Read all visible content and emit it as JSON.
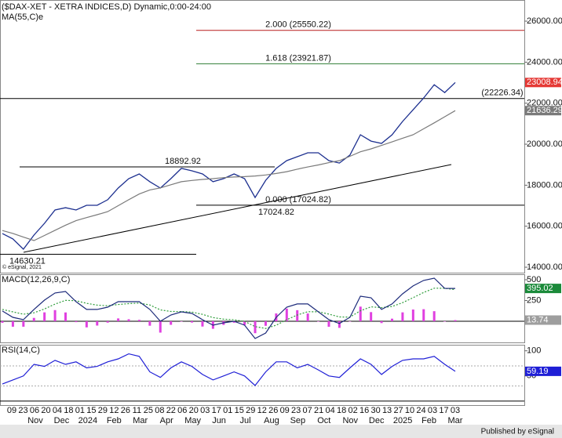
{
  "chart_data": [
    {
      "type": "line",
      "title": "($DAX-XET - XETRA INDICES,D) Dynamic,0:00-24:00",
      "subtitle": "MA(55,C)e",
      "watermark": "© eSignal, 2021",
      "ylim": [
        13734,
        27032
      ],
      "yticks": [
        {
          "value": 14000,
          "label": "14000.00"
        },
        {
          "value": 16000,
          "label": "16000.00"
        },
        {
          "value": 18000,
          "label": "18000.00"
        },
        {
          "value": 20000,
          "label": "20000.00"
        },
        {
          "value": 22000,
          "label": "22000.00"
        },
        {
          "value": 24000,
          "label": "24000.00"
        },
        {
          "value": 26000,
          "label": "26000.00"
        }
      ],
      "series": [
        {
          "name": "$DAX-XET",
          "color": "#1c2f8f",
          "box_color": "#e53935",
          "values": [
            15640,
            15380,
            14880,
            15570,
            16140,
            16790,
            16900,
            16790,
            17020,
            17020,
            17290,
            17860,
            18320,
            18550,
            18170,
            17860,
            18320,
            18820,
            18700,
            18550,
            18170,
            18320,
            18550,
            18320,
            17400,
            18240,
            18820,
            19200,
            19390,
            19580,
            19580,
            19200,
            19080,
            19470,
            20460,
            20150,
            20040,
            20460,
            21110,
            21680,
            22250,
            22900,
            22520,
            23008.94
          ]
        },
        {
          "name": "MA(55,C)e",
          "color": "#7a7a7a",
          "box_color": "#7a7a7a",
          "values": [
            15790,
            15650,
            15470,
            15300,
            15550,
            15800,
            16050,
            16270,
            16420,
            16560,
            16710,
            17000,
            17290,
            17570,
            17770,
            17870,
            18020,
            18170,
            18230,
            18280,
            18320,
            18370,
            18400,
            18420,
            18450,
            18500,
            18570,
            18660,
            18780,
            18890,
            18990,
            19100,
            19200,
            19410,
            19630,
            19770,
            19940,
            20110,
            20290,
            20460,
            20750,
            21040,
            21340,
            21636.29
          ]
        }
      ],
      "levels": [
        {
          "label": "2.000 (25550.22)",
          "value": 25550.22,
          "color": "#b71c1c"
        },
        {
          "label": "1.618 (23921.87)",
          "value": 23921.87,
          "color": "#2e7d32"
        },
        {
          "label": "(22226.34)",
          "value": 22226.34,
          "color": "#000000"
        },
        {
          "value": 18892.92,
          "color": "#000000"
        },
        {
          "label": "0.000 (17024.82)",
          "value": 17024.82,
          "color": "#000000"
        },
        {
          "value": 14630.21,
          "color": "#000000"
        }
      ],
      "swing_low": 17024.82,
      "trendline": [
        14728,
        19007
      ]
    },
    {
      "type": "line",
      "title": "MACD(12,26,9,C)",
      "ylim": [
        -255,
        566
      ],
      "yticks": [
        250,
        500
      ],
      "series": [
        {
          "style": "bar",
          "color": "#e040e0",
          "box_color": "#9e9e9e",
          "values": [
            -19,
            -66,
            -66,
            40,
            107,
            134,
            106,
            -11,
            -74,
            -52,
            -17,
            34,
            24,
            17,
            -54,
            -137,
            -43,
            -4,
            -16,
            -64,
            -91,
            -44,
            -18,
            -45,
            -144,
            -55,
            94,
            152,
            133,
            93,
            -1,
            -67,
            -80,
            -3,
            176,
            110,
            -22,
            31,
            107,
            141,
            145,
            121,
            -1,
            13.74
          ]
        },
        {
          "style": "dotted",
          "color": "#2e9d3a",
          "values": [
            142,
            113,
            85,
            102,
            148,
            206,
            252,
            247,
            216,
            194,
            187,
            202,
            212,
            219,
            196,
            137,
            118,
            117,
            110,
            83,
            44,
            25,
            18,
            -2,
            -64,
            -87,
            -47,
            18,
            75,
            115,
            114,
            86,
            52,
            50,
            126,
            173,
            164,
            177,
            223,
            284,
            346,
            398,
            397,
            381.28
          ]
        },
        {
          "color": "#1c2a7a",
          "box_color": "#1b8a3a",
          "values": [
            123,
            47,
            19,
            142,
            255,
            340,
            358,
            236,
            142,
            142,
            170,
            236,
            236,
            236,
            142,
            0,
            75,
            113,
            94,
            19,
            -47,
            -19,
            0,
            -47,
            -208,
            -142,
            47,
            170,
            208,
            208,
            113,
            19,
            -28,
            47,
            302,
            283,
            142,
            208,
            330,
            425,
            491,
            519,
            396,
            395.02
          ]
        }
      ]
    },
    {
      "type": "line",
      "title": "RSI(14,C)",
      "ylim": [
        -8,
        112
      ],
      "yticks": [
        50,
        100
      ],
      "bands": [
        30,
        70
      ],
      "series": [
        {
          "color": "#1f1fd6",
          "box_color": "#1f1fd6",
          "values": [
            34,
            42,
            50,
            73,
            69,
            81,
            73,
            78,
            66,
            69,
            78,
            84,
            94,
            89,
            58,
            47,
            66,
            78,
            69,
            53,
            42,
            50,
            58,
            50,
            31,
            58,
            78,
            78,
            66,
            73,
            62,
            50,
            47,
            66,
            84,
            73,
            53,
            69,
            81,
            84,
            84,
            89,
            73,
            59.19
          ]
        }
      ]
    }
  ],
  "x_axis": {
    "days": [
      "09",
      "23",
      "06",
      "20",
      "04",
      "18",
      "01",
      "15",
      "29",
      "12",
      "26",
      "11",
      "25",
      "08",
      "22",
      "06",
      "20",
      "03",
      "17",
      "01",
      "15",
      "29",
      "12",
      "26",
      "09",
      "23",
      "07",
      "21",
      "04",
      "18",
      "02",
      "16",
      "30",
      "13",
      "27",
      "10",
      "24",
      "03",
      "17",
      "03"
    ],
    "months": [
      "Nov",
      "Dec",
      "2024",
      "Feb",
      "Mar",
      "Apr",
      "May",
      "Jun",
      "Jul",
      "Aug",
      "Sep",
      "Oct",
      "Nov",
      "Dec",
      "2025",
      "Feb",
      "Mar"
    ]
  },
  "footer": "Published by eSignal"
}
